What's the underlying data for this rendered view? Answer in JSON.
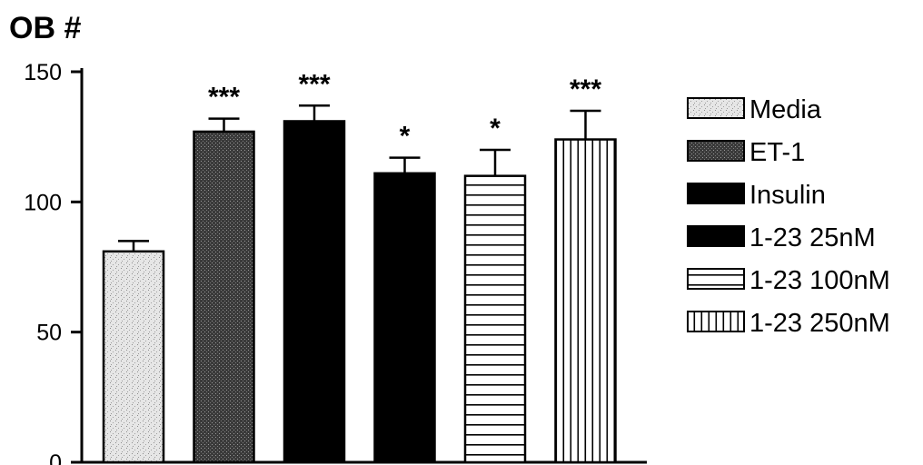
{
  "chart_data": {
    "type": "bar",
    "title": "OB #",
    "xlabel": "",
    "ylabel": "",
    "ylim": [
      0,
      150
    ],
    "yticks": [
      0,
      50,
      100,
      150
    ],
    "grid": false,
    "legend_position": "right",
    "categories": [
      "Media",
      "ET-1",
      "Insulin",
      "1-23 25nM",
      "1-23 100nM",
      "1-23 250nM"
    ],
    "values": [
      81,
      127,
      131,
      111,
      110,
      124
    ],
    "errors": [
      4,
      5,
      6,
      6,
      10,
      11
    ],
    "significance": [
      "",
      "***",
      "***",
      "*",
      "*",
      "***"
    ],
    "patterns": [
      "light-stipple",
      "dark-stipple",
      "solid-black",
      "solid-black",
      "horizontal-lines",
      "vertical-lines"
    ],
    "colors": {
      "axis": "#000000",
      "media_fill": "#d9d9d9",
      "et1_fill": "#4a4a4a",
      "solid_fill": "#000000",
      "lines": "#000000",
      "background": "#ffffff"
    }
  }
}
